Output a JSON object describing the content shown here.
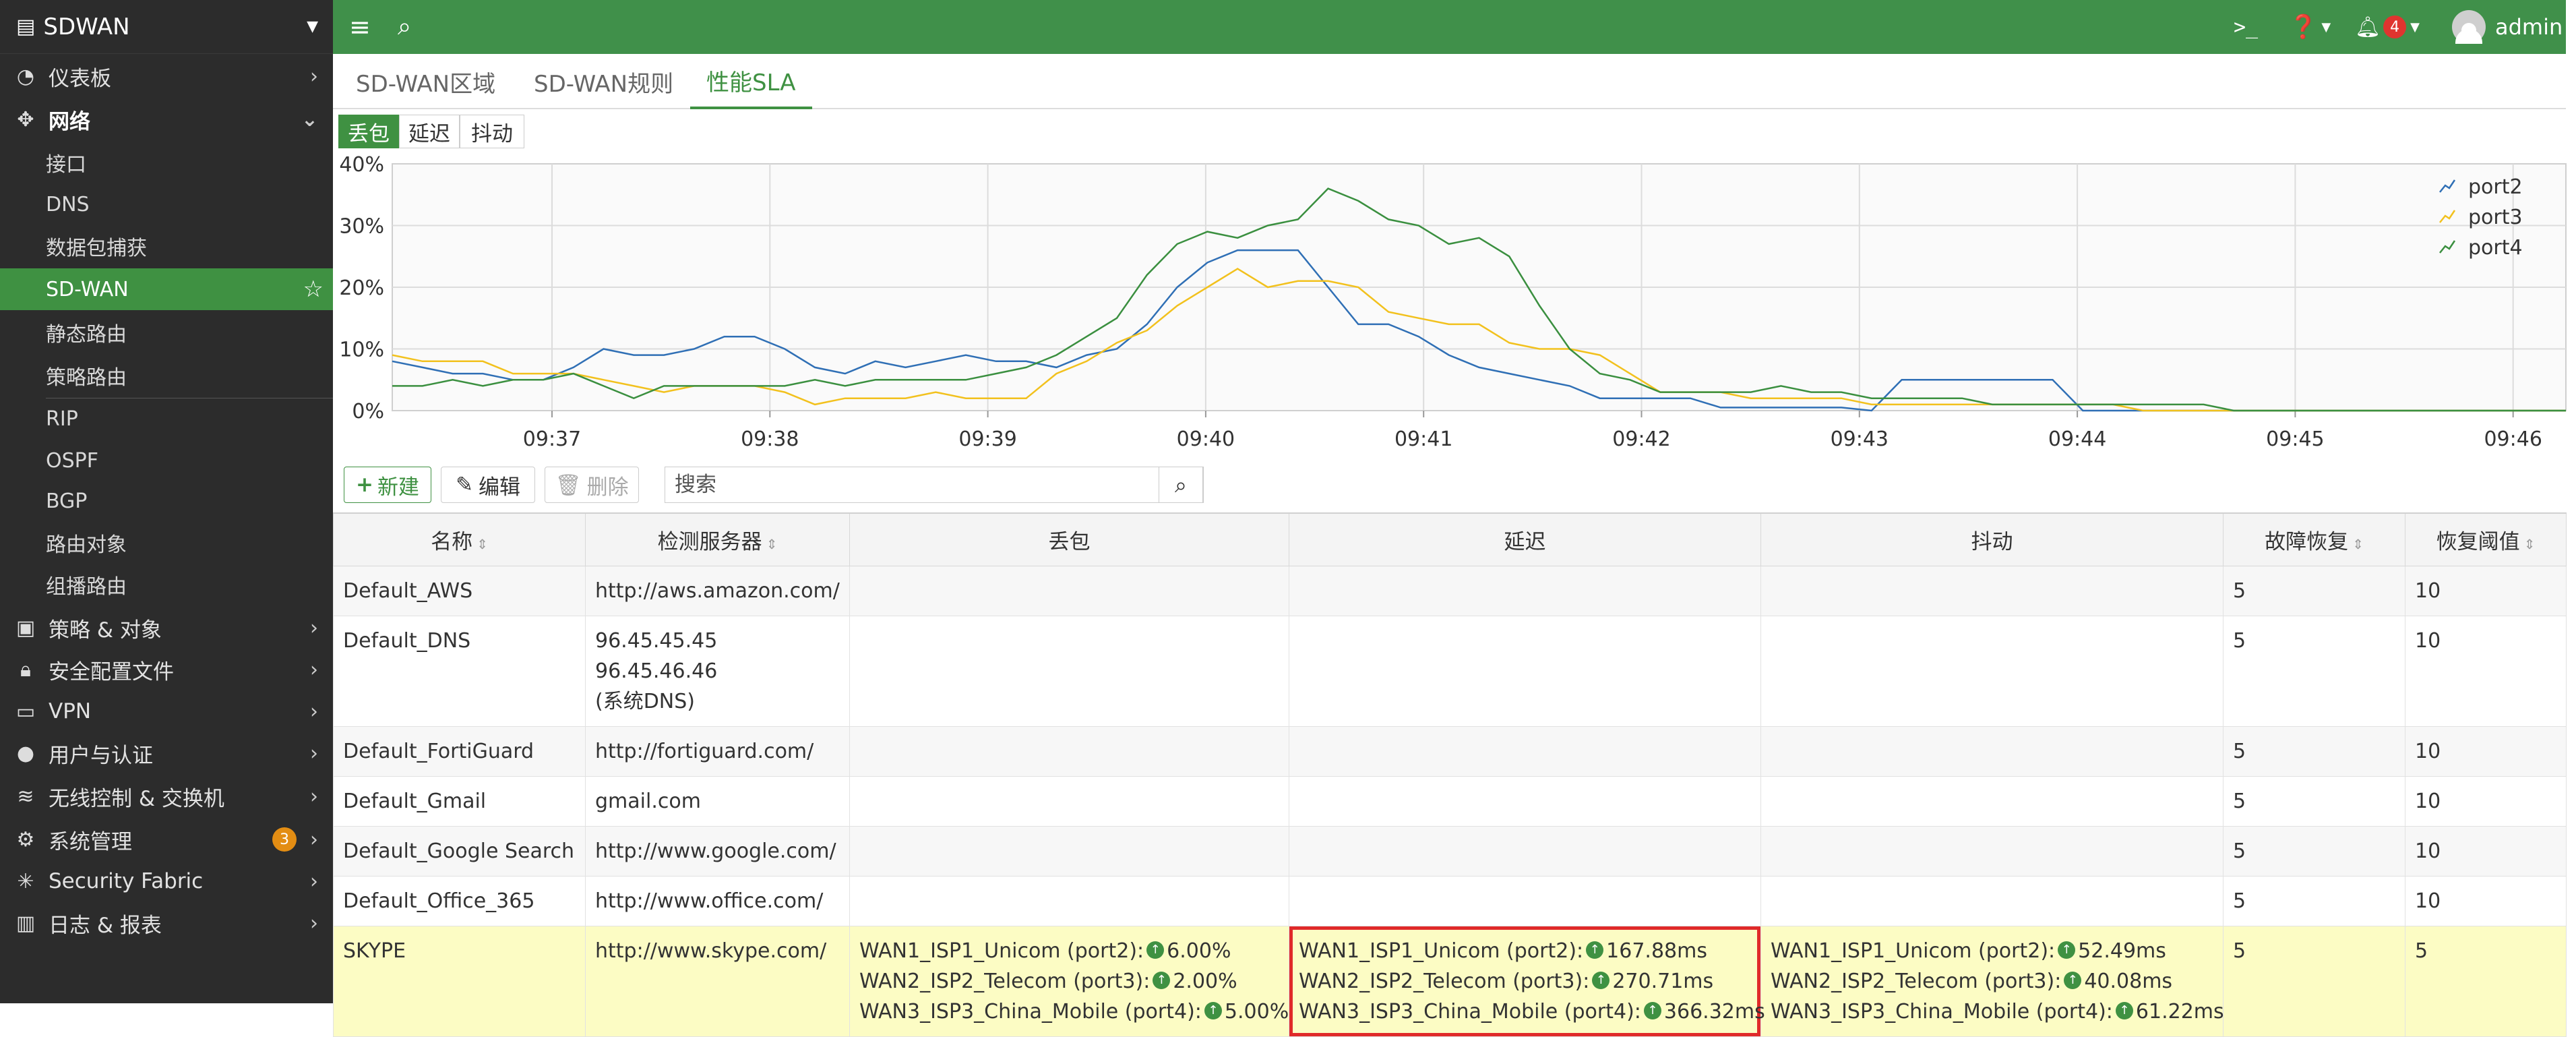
{
  "sidebar": {
    "title": "SDWAN",
    "items": [
      {
        "label": "仪表板"
      },
      {
        "label": "网络"
      },
      {
        "label": "接口"
      },
      {
        "label": "DNS"
      },
      {
        "label": "数据包捕获"
      },
      {
        "label": "SD-WAN"
      },
      {
        "label": "静态路由"
      },
      {
        "label": "策略路由"
      },
      {
        "label": "RIP"
      },
      {
        "label": "OSPF"
      },
      {
        "label": "BGP"
      },
      {
        "label": "路由对象"
      },
      {
        "label": "组播路由"
      },
      {
        "label": "策略 & 对象"
      },
      {
        "label": "安全配置文件"
      },
      {
        "label": "VPN"
      },
      {
        "label": "用户与认证"
      },
      {
        "label": "无线控制 & 交换机"
      },
      {
        "label": "系统管理",
        "badge": "3"
      },
      {
        "label": "Security Fabric"
      },
      {
        "label": "日志 & 报表"
      }
    ]
  },
  "topbar": {
    "notification_count": "4",
    "user": "admin"
  },
  "tabs": [
    {
      "label": "SD-WAN区域"
    },
    {
      "label": "SD-WAN规则"
    },
    {
      "label": "性能SLA"
    }
  ],
  "chart_toggles": [
    "丢包",
    "延迟",
    "抖动"
  ],
  "chart_data": {
    "type": "line",
    "y_tick_labels": [
      "40%",
      "30%",
      "20%",
      "10%",
      "0%"
    ],
    "ylim": [
      0,
      40
    ],
    "x_tick_labels": [
      "09:37",
      "09:38",
      "09:39",
      "09:40",
      "09:41",
      "09:42",
      "09:43",
      "09:44",
      "09:45",
      "09:46"
    ],
    "grid": true,
    "legend_position": "top-right",
    "series": [
      {
        "name": "port2",
        "color": "#2f6fb5",
        "values": [
          8,
          7,
          6,
          6,
          5,
          5,
          7,
          10,
          9,
          9,
          10,
          12,
          12,
          10,
          7,
          6,
          8,
          7,
          8,
          9,
          8,
          8,
          7,
          9,
          10,
          14,
          20,
          24,
          26,
          26,
          26,
          20,
          14,
          14,
          12,
          9,
          7,
          6,
          5,
          4,
          2,
          2,
          2,
          2,
          0.5,
          0.5,
          0.5,
          0.5,
          0.5,
          0,
          5,
          5,
          5,
          5,
          5,
          5,
          0,
          0,
          0,
          0,
          0,
          0,
          0,
          0,
          0,
          0,
          0,
          0,
          0,
          0,
          0,
          0,
          0
        ]
      },
      {
        "name": "port3",
        "color": "#f2c11d",
        "values": [
          9,
          8,
          8,
          8,
          6,
          6,
          6,
          5,
          4,
          3,
          4,
          4,
          4,
          3,
          1,
          2,
          2,
          2,
          3,
          2,
          2,
          2,
          6,
          8,
          11,
          13,
          17,
          20,
          23,
          20,
          21,
          21,
          20,
          16,
          15,
          14,
          14,
          11,
          10,
          10,
          9,
          6,
          3,
          3,
          3,
          2,
          2,
          2,
          2,
          1,
          1,
          1,
          1,
          1,
          1,
          1,
          1,
          1,
          0,
          0,
          0,
          0,
          0,
          0,
          0,
          0,
          0,
          0,
          0,
          0,
          0,
          0,
          0
        ]
      },
      {
        "name": "port4",
        "color": "#3a8f3f",
        "values": [
          4,
          4,
          5,
          4,
          5,
          5,
          6,
          4,
          2,
          4,
          4,
          4,
          4,
          4,
          5,
          4,
          5,
          5,
          5,
          5,
          6,
          7,
          9,
          12,
          15,
          22,
          27,
          29,
          28,
          30,
          31,
          36,
          34,
          31,
          30,
          27,
          28,
          25,
          17,
          10,
          6,
          5,
          3,
          3,
          3,
          3,
          4,
          3,
          3,
          2,
          2,
          2,
          2,
          1,
          1,
          1,
          1,
          1,
          1,
          1,
          1,
          0,
          0,
          0,
          0,
          0,
          0,
          0,
          0,
          0,
          0,
          0,
          0
        ]
      }
    ]
  },
  "toolbar": {
    "new_label": "新建",
    "edit_label": "编辑",
    "delete_label": "删除",
    "search_placeholder": "搜索"
  },
  "table": {
    "headers": [
      "名称",
      "检测服务器",
      "丢包",
      "延迟",
      "抖动",
      "故障恢复",
      "恢复阈值"
    ],
    "rows": [
      {
        "name": "Default_AWS",
        "servers": [
          "http://aws.amazon.com/"
        ],
        "loss": [],
        "latency": [],
        "jitter": [],
        "failover": "5",
        "threshold": "10"
      },
      {
        "name": "Default_DNS",
        "servers": [
          "96.45.45.45",
          "96.45.46.46",
          "(系统DNS)"
        ],
        "loss": [],
        "latency": [],
        "jitter": [],
        "failover": "5",
        "threshold": "10"
      },
      {
        "name": "Default_FortiGuard",
        "servers": [
          "http://fortiguard.com/"
        ],
        "loss": [],
        "latency": [],
        "jitter": [],
        "failover": "5",
        "threshold": "10"
      },
      {
        "name": "Default_Gmail",
        "servers": [
          "gmail.com"
        ],
        "loss": [],
        "latency": [],
        "jitter": [],
        "failover": "5",
        "threshold": "10"
      },
      {
        "name": "Default_Google Search",
        "servers": [
          "http://www.google.com/"
        ],
        "loss": [],
        "latency": [],
        "jitter": [],
        "failover": "5",
        "threshold": "10"
      },
      {
        "name": "Default_Office_365",
        "servers": [
          "http://www.office.com/"
        ],
        "loss": [],
        "latency": [],
        "jitter": [],
        "failover": "5",
        "threshold": "10"
      },
      {
        "name": "SKYPE",
        "servers": [
          "http://www.skype.com/"
        ],
        "loss": [
          {
            "link": "WAN1_ISP1_Unicom (port2):",
            "value": "6.00%"
          },
          {
            "link": "WAN2_ISP2_Telecom (port3):",
            "value": "2.00%"
          },
          {
            "link": "WAN3_ISP3_China_Mobile (port4):",
            "value": "5.00%"
          }
        ],
        "latency": [
          {
            "link": "WAN1_ISP1_Unicom (port2):",
            "value": "167.88ms"
          },
          {
            "link": "WAN2_ISP2_Telecom (port3):",
            "value": "270.71ms"
          },
          {
            "link": "WAN3_ISP3_China_Mobile (port4):",
            "value": "366.32ms"
          }
        ],
        "jitter": [
          {
            "link": "WAN1_ISP1_Unicom (port2):",
            "value": "52.49ms"
          },
          {
            "link": "WAN2_ISP2_Telecom (port3):",
            "value": "40.08ms"
          },
          {
            "link": "WAN3_ISP3_China_Mobile (port4):",
            "value": "61.22ms"
          }
        ],
        "failover": "5",
        "threshold": "5"
      }
    ]
  }
}
